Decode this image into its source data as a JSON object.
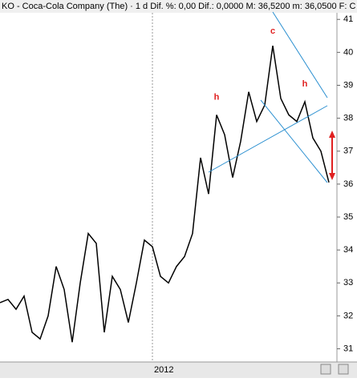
{
  "chart_data": {
    "type": "line",
    "title": "KO - Coca-Cola Company (The) · 1 d  Dif. %: 0,00  Dif.: 0,0000  M: 36,5200  m: 36,0500  F: C",
    "categories": [
      null,
      null,
      null,
      null,
      null,
      null,
      null,
      null,
      null,
      null,
      null,
      null,
      null,
      null,
      null,
      null,
      null,
      null,
      null,
      "2012",
      null,
      null,
      null,
      null,
      null,
      null,
      null,
      null,
      null,
      null,
      null,
      null,
      null,
      null,
      null,
      null,
      null,
      null,
      null,
      null,
      null,
      null
    ],
    "series": [
      {
        "name": "KO",
        "color": "#000000",
        "values": [
          32.4,
          32.5,
          32.2,
          32.6,
          31.5,
          31.3,
          32,
          33.5,
          32.8,
          31.2,
          33,
          34.5,
          34.2,
          31.5,
          33.2,
          32.8,
          31.8,
          33,
          34.3,
          34.1,
          33.2,
          33,
          33.5,
          33.8,
          34.5,
          36.8,
          35.7,
          38.1,
          37.5,
          36.2,
          37.3,
          38.8,
          37.9,
          38.4,
          40.2,
          38.6,
          38.1,
          37.9,
          38.5,
          37.4,
          37,
          36.05
        ]
      }
    ],
    "ylim": [
      30.6,
      41.2
    ],
    "yticks": [
      31,
      32,
      33,
      34,
      35,
      36,
      37,
      38,
      39,
      40,
      41
    ],
    "annotations": [
      "h",
      "c",
      "h"
    ]
  }
}
